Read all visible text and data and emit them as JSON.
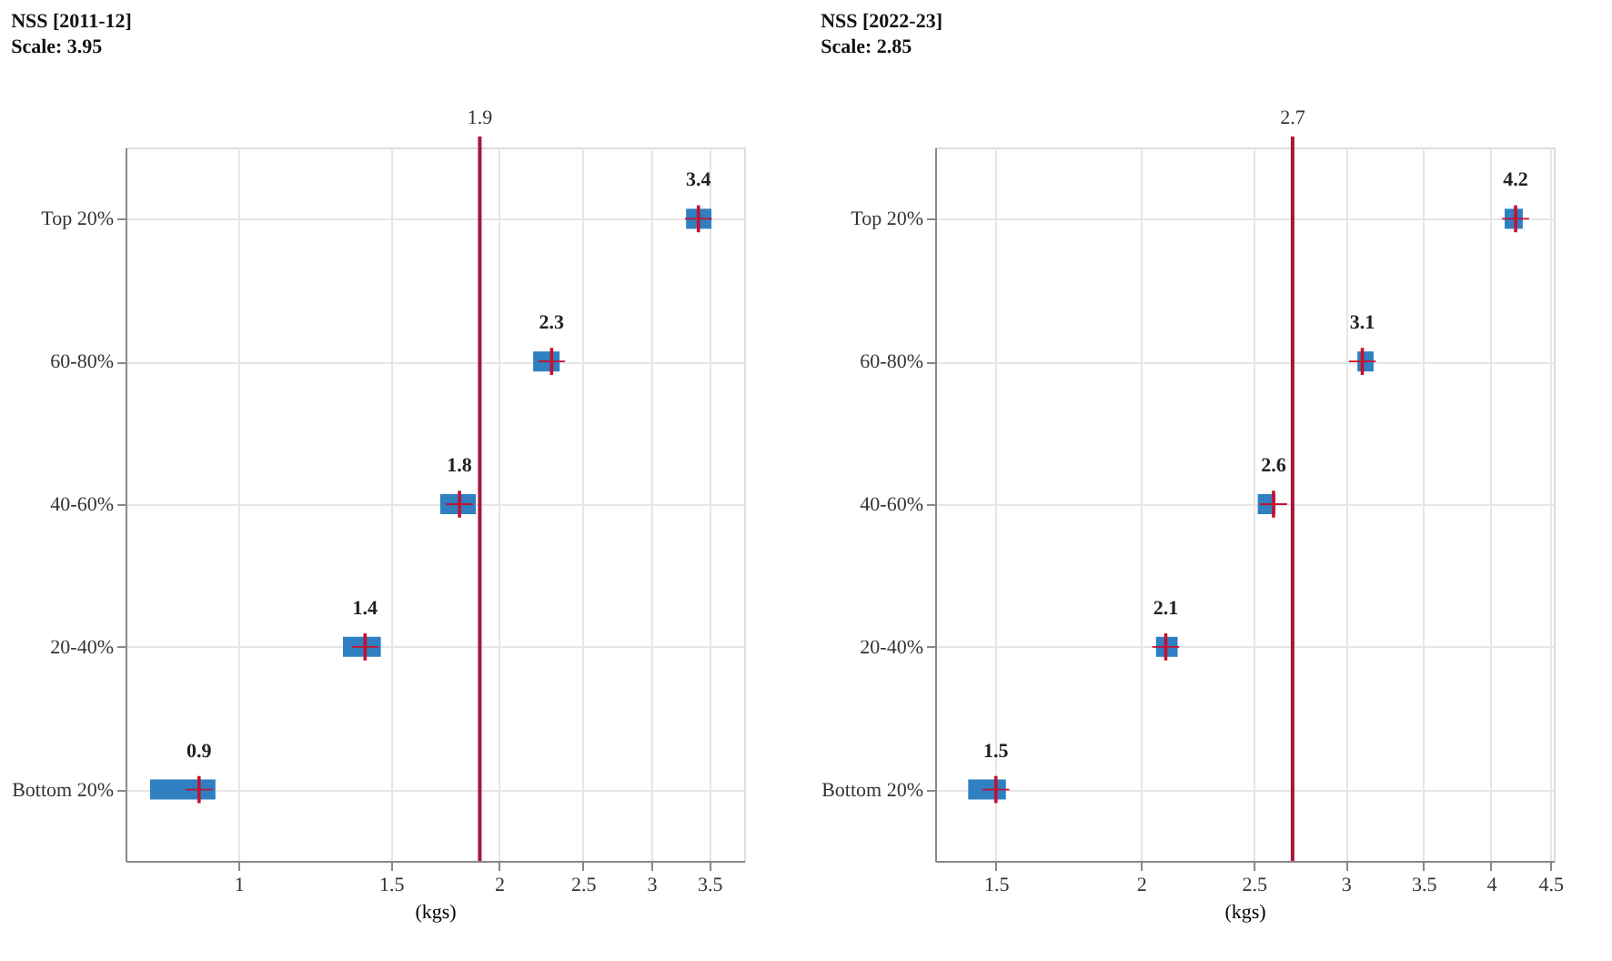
{
  "chart_data": [
    {
      "type": "scatter",
      "title": "NSS [2011-12]",
      "subtitle": "Scale: 3.95",
      "xlabel": "(kgs)",
      "categories": [
        "Top 20%",
        "60-80%",
        "40-60%",
        "20-40%",
        "Bottom 20%"
      ],
      "orientation": "horizontal",
      "series": [
        {
          "color": "#c8102e",
          "values": [
            3.4,
            2.3,
            1.8,
            1.4,
            0.9
          ],
          "errors": [
            [
              3.29,
              3.52
            ],
            [
              2.19,
              2.35
            ],
            [
              1.71,
              1.88
            ],
            [
              1.32,
              1.46
            ],
            [
              0.79,
              0.94
            ]
          ]
        }
      ],
      "xlim": [
        0.74,
        3.84
      ],
      "xticks": [
        1,
        1.5,
        2,
        2.5,
        3,
        3.5
      ],
      "log": "x",
      "grid": true,
      "data_labels": true,
      "marker": "cross",
      "ref_lines": [
        {
          "axis": "x",
          "value": 1.9,
          "label": "1.9",
          "color": "#a8163a"
        }
      ]
    },
    {
      "type": "scatter",
      "title": "NSS [2022-23]",
      "subtitle": "Scale: 2.85",
      "xlabel": "(kgs)",
      "categories": [
        "Top 20%",
        "60-80%",
        "40-60%",
        "20-40%",
        "Bottom 20%"
      ],
      "orientation": "horizontal",
      "series": [
        {
          "color": "#c8102e",
          "values": [
            4.2,
            3.1,
            2.6,
            2.1,
            1.5
          ],
          "errors": [
            [
              4.11,
              4.26
            ],
            [
              3.07,
              3.17
            ],
            [
              2.52,
              2.61
            ],
            [
              2.06,
              2.15
            ],
            [
              1.42,
              1.53
            ]
          ]
        }
      ],
      "xlim": [
        1.33,
        4.53
      ],
      "xticks": [
        1.5,
        2,
        2.5,
        3,
        3.5,
        4,
        4.5
      ],
      "log": "x",
      "grid": true,
      "data_labels": true,
      "marker": "cross",
      "ref_lines": [
        {
          "axis": "x",
          "value": 2.7,
          "label": "2.7",
          "color": "#a8163a"
        }
      ]
    }
  ]
}
